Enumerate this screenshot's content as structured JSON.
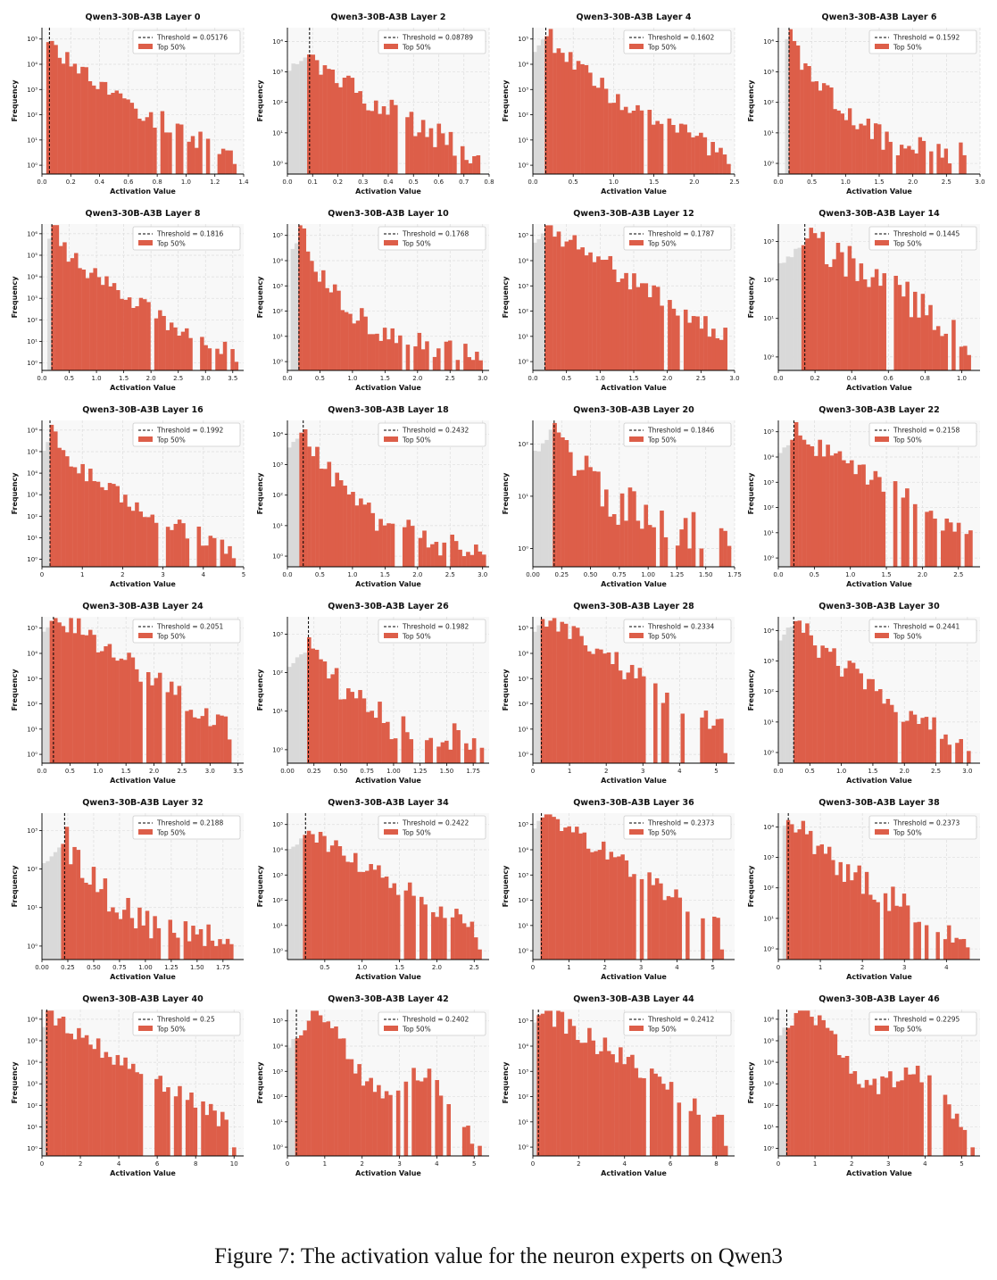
{
  "caption": "Figure 7: The activation value for the neuron experts on Qwen3",
  "legend_label": "Top 50%",
  "colors": {
    "top": "#dd5e49",
    "below": "#d9d9d9",
    "panel_bg": "#f8f8f8",
    "grid": "#dddddd"
  },
  "chart_data": [
    {
      "type": "histogram",
      "title": "Qwen3-30B-A3B Layer 0",
      "xlabel": "Activation Value",
      "ylabel": "Frequency",
      "threshold": 0.05176,
      "threshold_label": "Threshold = 0.05176",
      "xlim": [
        0,
        1.4
      ],
      "xticks": [
        0,
        0.2,
        0.4,
        0.6,
        0.8,
        1.0,
        1.2,
        1.4
      ],
      "xtick_labels": [
        "0.0",
        "0.2",
        "0.4",
        "0.6",
        "0.8",
        "1.0",
        "1.2",
        "1.4"
      ],
      "ymax_exp": 5,
      "ystart": 0.03,
      "hmax": 1.35,
      "peak": 5.2,
      "decay": "m"
    },
    {
      "type": "histogram",
      "title": "Qwen3-30B-A3B Layer 2",
      "xlabel": "Activation Value",
      "ylabel": "Frequency",
      "threshold": 0.08789,
      "threshold_label": "Threshold = 0.08789",
      "xlim": [
        0,
        0.8
      ],
      "xticks": [
        0,
        0.1,
        0.2,
        0.3,
        0.4,
        0.5,
        0.6,
        0.7,
        0.8
      ],
      "xtick_labels": [
        "0.0",
        "0.1",
        "0.2",
        "0.3",
        "0.4",
        "0.5",
        "0.6",
        "0.7",
        "0.8"
      ],
      "ymax_exp": 4,
      "ystart": 0.0,
      "hmax": 0.78,
      "peak": 3.9,
      "decay": "m"
    },
    {
      "type": "histogram",
      "title": "Qwen3-30B-A3B Layer 4",
      "xlabel": "Activation Value",
      "ylabel": "Frequency",
      "threshold": 0.1602,
      "threshold_label": "Threshold = 0.1602",
      "xlim": [
        0,
        2.5
      ],
      "xticks": [
        0,
        0.5,
        1.0,
        1.5,
        2.0,
        2.5
      ],
      "xtick_labels": [
        "0.0",
        "0.5",
        "1.0",
        "1.5",
        "2.0",
        "2.5"
      ],
      "ymax_exp": 5,
      "ystart": 0.0,
      "hmax": 2.45,
      "peak": 5.3,
      "decay": "m"
    },
    {
      "type": "histogram",
      "title": "Qwen3-30B-A3B Layer 6",
      "xlabel": "Activation Value",
      "ylabel": "Frequency",
      "threshold": 0.1592,
      "threshold_label": "Threshold = 0.1592",
      "xlim": [
        0,
        3.0
      ],
      "xticks": [
        0,
        0.5,
        1.0,
        1.5,
        2.0,
        2.5,
        3.0
      ],
      "xtick_labels": [
        "0.0",
        "0.5",
        "1.0",
        "1.5",
        "2.0",
        "2.5",
        "3.0"
      ],
      "ymax_exp": 4,
      "ystart": 0.1,
      "hmax": 2.85,
      "peak": 4.4,
      "decay": "f"
    },
    {
      "type": "histogram",
      "title": "Qwen3-30B-A3B Layer 8",
      "xlabel": "Activation Value",
      "ylabel": "Frequency",
      "threshold": 0.1816,
      "threshold_label": "Threshold = 0.1816",
      "xlim": [
        0,
        3.7
      ],
      "xticks": [
        0,
        0.5,
        1.0,
        1.5,
        2.0,
        2.5,
        3.0,
        3.5
      ],
      "xtick_labels": [
        "0.0",
        "0.5",
        "1.0",
        "1.5",
        "2.0",
        "2.5",
        "3.0",
        "3.5"
      ],
      "ymax_exp": 6,
      "ystart": 0.1,
      "hmax": 3.6,
      "peak": 6.1,
      "decay": "m"
    },
    {
      "type": "histogram",
      "title": "Qwen3-30B-A3B Layer 10",
      "xlabel": "Activation Value",
      "ylabel": "Frequency",
      "threshold": 0.1768,
      "threshold_label": "Threshold = 0.1768",
      "xlim": [
        0,
        3.1
      ],
      "xticks": [
        0,
        0.5,
        1.0,
        1.5,
        2.0,
        2.5,
        3.0
      ],
      "xtick_labels": [
        "0.0",
        "0.5",
        "1.0",
        "1.5",
        "2.0",
        "2.5",
        "3.0"
      ],
      "ymax_exp": 5,
      "ystart": 0.05,
      "hmax": 3.0,
      "peak": 5.1,
      "decay": "f"
    },
    {
      "type": "histogram",
      "title": "Qwen3-30B-A3B Layer 12",
      "xlabel": "Activation Value",
      "ylabel": "Frequency",
      "threshold": 0.1787,
      "threshold_label": "Threshold = 0.1787",
      "xlim": [
        0,
        3.0
      ],
      "xticks": [
        0,
        0.5,
        1.0,
        1.5,
        2.0,
        2.5,
        3.0
      ],
      "xtick_labels": [
        "0.0",
        "0.5",
        "1.0",
        "1.5",
        "2.0",
        "2.5",
        "3.0"
      ],
      "ymax_exp": 5,
      "ystart": 0.0,
      "hmax": 2.95,
      "peak": 5.4,
      "decay": "s"
    },
    {
      "type": "histogram",
      "title": "Qwen3-30B-A3B Layer 14",
      "xlabel": "Activation Value",
      "ylabel": "Frequency",
      "threshold": 0.1445,
      "threshold_label": "Threshold = 0.1445",
      "xlim": [
        0,
        1.1
      ],
      "xticks": [
        0,
        0.2,
        0.4,
        0.6,
        0.8,
        1.0
      ],
      "xtick_labels": [
        "0.0",
        "0.2",
        "0.4",
        "0.6",
        "0.8",
        "1.0"
      ],
      "ymax_exp": 3,
      "ystart": 0.0,
      "hmax": 1.05,
      "peak": 3.2,
      "decay": "s"
    },
    {
      "type": "histogram",
      "title": "Qwen3-30B-A3B Layer 16",
      "xlabel": "Activation Value",
      "ylabel": "Frequency",
      "threshold": 0.1992,
      "threshold_label": "Threshold = 0.1992",
      "xlim": [
        0,
        5
      ],
      "xticks": [
        0,
        1,
        2,
        3,
        4,
        5
      ],
      "xtick_labels": [
        "0",
        "1",
        "2",
        "3",
        "4",
        "5"
      ],
      "ymax_exp": 6,
      "ystart": 0.0,
      "hmax": 4.8,
      "peak": 5.8,
      "decay": "m"
    },
    {
      "type": "histogram",
      "title": "Qwen3-30B-A3B Layer 18",
      "xlabel": "Activation Value",
      "ylabel": "Frequency",
      "threshold": 0.2432,
      "threshold_label": "Threshold = 0.2432",
      "xlim": [
        0,
        3.1
      ],
      "xticks": [
        0,
        0.5,
        1.0,
        1.5,
        2.0,
        2.5,
        3.0
      ],
      "xtick_labels": [
        "0.0",
        "0.5",
        "1.0",
        "1.5",
        "2.0",
        "2.5",
        "3.0"
      ],
      "ymax_exp": 4,
      "ystart": 0.0,
      "hmax": 3.05,
      "peak": 4.3,
      "decay": "f"
    },
    {
      "type": "histogram",
      "title": "Qwen3-30B-A3B Layer 20",
      "xlabel": "Activation Value",
      "ylabel": "Frequency",
      "threshold": 0.1846,
      "threshold_label": "Threshold = 0.1846",
      "xlim": [
        0,
        1.75
      ],
      "xticks": [
        0,
        0.25,
        0.5,
        0.75,
        1.0,
        1.25,
        1.5,
        1.75
      ],
      "xtick_labels": [
        "0.00",
        "0.25",
        "0.50",
        "0.75",
        "1.00",
        "1.25",
        "1.50",
        "1.75"
      ],
      "ymax_exp": 2,
      "ystart": 0.0,
      "hmax": 1.72,
      "peak": 2.6,
      "decay": "f"
    },
    {
      "type": "histogram",
      "title": "Qwen3-30B-A3B Layer 22",
      "xlabel": "Activation Value",
      "ylabel": "Frequency",
      "threshold": 0.2158,
      "threshold_label": "Threshold = 0.2158",
      "xlim": [
        0,
        2.8
      ],
      "xticks": [
        0,
        0.5,
        1.0,
        1.5,
        2.0,
        2.5
      ],
      "xtick_labels": [
        "0.0",
        "0.5",
        "1.0",
        "1.5",
        "2.0",
        "2.5"
      ],
      "ymax_exp": 5,
      "ystart": 0.0,
      "hmax": 2.75,
      "peak": 5.0,
      "decay": "s"
    },
    {
      "type": "histogram",
      "title": "Qwen3-30B-A3B Layer 24",
      "xlabel": "Activation Value",
      "ylabel": "Frequency",
      "threshold": 0.2051,
      "threshold_label": "Threshold = 0.2051",
      "xlim": [
        0,
        3.6
      ],
      "xticks": [
        0,
        0.5,
        1.0,
        1.5,
        2.0,
        2.5,
        3.0,
        3.5
      ],
      "xtick_labels": [
        "0.0",
        "0.5",
        "1.0",
        "1.5",
        "2.0",
        "2.5",
        "3.0",
        "3.5"
      ],
      "ymax_exp": 5,
      "ystart": 0.0,
      "hmax": 3.45,
      "peak": 5.6,
      "decay": "s"
    },
    {
      "type": "histogram",
      "title": "Qwen3-30B-A3B Layer 26",
      "xlabel": "Activation Value",
      "ylabel": "Frequency",
      "threshold": 0.1982,
      "threshold_label": "Threshold = 0.1982",
      "xlim": [
        0,
        1.9
      ],
      "xticks": [
        0,
        0.25,
        0.5,
        0.75,
        1.0,
        1.25,
        1.5,
        1.75
      ],
      "xtick_labels": [
        "0.00",
        "0.25",
        "0.50",
        "0.75",
        "1.00",
        "1.25",
        "1.50",
        "1.75"
      ],
      "ymax_exp": 3,
      "ystart": 0.0,
      "hmax": 1.85,
      "peak": 2.9,
      "decay": "f"
    },
    {
      "type": "histogram",
      "title": "Qwen3-30B-A3B Layer 28",
      "xlabel": "Activation Value",
      "ylabel": "Frequency",
      "threshold": 0.2334,
      "threshold_label": "Threshold = 0.2334",
      "xlim": [
        0,
        5.5
      ],
      "xticks": [
        0,
        1,
        2,
        3,
        4,
        5
      ],
      "xtick_labels": [
        "0",
        "1",
        "2",
        "3",
        "4",
        "5"
      ],
      "ymax_exp": 5,
      "ystart": 0.0,
      "hmax": 5.3,
      "peak": 5.5,
      "decay": "s"
    },
    {
      "type": "histogram",
      "title": "Qwen3-30B-A3B Layer 30",
      "xlabel": "Activation Value",
      "ylabel": "Frequency",
      "threshold": 0.2441,
      "threshold_label": "Threshold = 0.2441",
      "xlim": [
        0,
        3.2
      ],
      "xticks": [
        0,
        0.5,
        1.0,
        1.5,
        2.0,
        2.5,
        3.0
      ],
      "xtick_labels": [
        "0.0",
        "0.5",
        "1.0",
        "1.5",
        "2.0",
        "2.5",
        "3.0"
      ],
      "ymax_exp": 4,
      "ystart": 0.0,
      "hmax": 3.05,
      "peak": 4.5,
      "decay": "m"
    },
    {
      "type": "histogram",
      "title": "Qwen3-30B-A3B Layer 32",
      "xlabel": "Activation Value",
      "ylabel": "Frequency",
      "threshold": 0.2188,
      "threshold_label": "Threshold = 0.2188",
      "xlim": [
        0,
        1.95
      ],
      "xticks": [
        0,
        0.25,
        0.5,
        0.75,
        1.0,
        1.25,
        1.5,
        1.75
      ],
      "xtick_labels": [
        "0.00",
        "0.25",
        "0.50",
        "0.75",
        "1.00",
        "1.25",
        "1.50",
        "1.75"
      ],
      "ymax_exp": 3,
      "ystart": 0.0,
      "hmax": 1.85,
      "peak": 2.9,
      "decay": "f"
    },
    {
      "type": "histogram",
      "title": "Qwen3-30B-A3B Layer 34",
      "xlabel": "Activation Value",
      "ylabel": "Frequency",
      "threshold": 0.2422,
      "threshold_label": "Threshold = 0.2422",
      "xlim": [
        0,
        2.7
      ],
      "xticks": [
        0.5,
        1.0,
        1.5,
        2.0,
        2.5
      ],
      "xtick_labels": [
        "0.5",
        "1.0",
        "1.5",
        "2.0",
        "2.5"
      ],
      "ymax_exp": 5,
      "ystart": 0.0,
      "hmax": 2.6,
      "peak": 4.8,
      "decay": "s"
    },
    {
      "type": "histogram",
      "title": "Qwen3-30B-A3B Layer 36",
      "xlabel": "Activation Value",
      "ylabel": "Frequency",
      "threshold": 0.2373,
      "threshold_label": "Threshold = 0.2373",
      "xlim": [
        0,
        5.6
      ],
      "xticks": [
        0,
        1,
        2,
        3,
        4,
        5
      ],
      "xtick_labels": [
        "0",
        "1",
        "2",
        "3",
        "4",
        "5"
      ],
      "ymax_exp": 5,
      "ystart": 0.0,
      "hmax": 5.3,
      "peak": 5.6,
      "decay": "s"
    },
    {
      "type": "histogram",
      "title": "Qwen3-30B-A3B Layer 38",
      "xlabel": "Activation Value",
      "ylabel": "Frequency",
      "threshold": 0.2373,
      "threshold_label": "Threshold = 0.2373",
      "xlim": [
        0,
        4.8
      ],
      "xticks": [
        0,
        1,
        2,
        3,
        4
      ],
      "xtick_labels": [
        "0",
        "1",
        "2",
        "3",
        "4"
      ],
      "ymax_exp": 4,
      "ystart": 0.1,
      "hmax": 4.55,
      "peak": 4.5,
      "decay": "m"
    },
    {
      "type": "histogram",
      "title": "Qwen3-30B-A3B Layer 40",
      "xlabel": "Activation Value",
      "ylabel": "Frequency",
      "threshold": 0.25,
      "threshold_label": "Threshold = 0.25",
      "xlim": [
        0,
        10.5
      ],
      "xticks": [
        0,
        2,
        4,
        6,
        8,
        10
      ],
      "xtick_labels": [
        "0",
        "2",
        "4",
        "6",
        "8",
        "10"
      ],
      "ymax_exp": 6,
      "ystart": 0.0,
      "hmax": 10.1,
      "peak": 6.2,
      "decay": "s"
    },
    {
      "type": "histogram",
      "title": "Qwen3-30B-A3B Layer 42",
      "xlabel": "Activation Value",
      "ylabel": "Frequency",
      "threshold": 0.2402,
      "threshold_label": "Threshold = 0.2402",
      "xlim": [
        0,
        5.4
      ],
      "xticks": [
        0,
        1,
        2,
        3,
        4,
        5
      ],
      "xtick_labels": [
        "0",
        "1",
        "2",
        "3",
        "4",
        "5"
      ],
      "ymax_exp": 5,
      "ystart": 0.0,
      "hmax": 5.2,
      "peak": 4.7,
      "decay": "b"
    },
    {
      "type": "histogram",
      "title": "Qwen3-30B-A3B Layer 44",
      "xlabel": "Activation Value",
      "ylabel": "Frequency",
      "threshold": 0.2412,
      "threshold_label": "Threshold = 0.2412",
      "xlim": [
        0,
        8.8
      ],
      "xticks": [
        0,
        2,
        4,
        6,
        8
      ],
      "xtick_labels": [
        "0",
        "2",
        "4",
        "6",
        "8"
      ],
      "ymax_exp": 5,
      "ystart": 0.0,
      "hmax": 8.5,
      "peak": 5.6,
      "decay": "s"
    },
    {
      "type": "histogram",
      "title": "Qwen3-30B-A3B Layer 46",
      "xlabel": "Activation Value",
      "ylabel": "Frequency",
      "threshold": 0.2295,
      "threshold_label": "Threshold = 0.2295",
      "xlim": [
        0,
        5.5
      ],
      "xticks": [
        0,
        1,
        2,
        3,
        4,
        5
      ],
      "xtick_labels": [
        "0",
        "1",
        "2",
        "3",
        "4",
        "5"
      ],
      "ymax_exp": 6,
      "ystart": 0.0,
      "hmax": 5.35,
      "peak": 6.0,
      "decay": "b"
    }
  ]
}
